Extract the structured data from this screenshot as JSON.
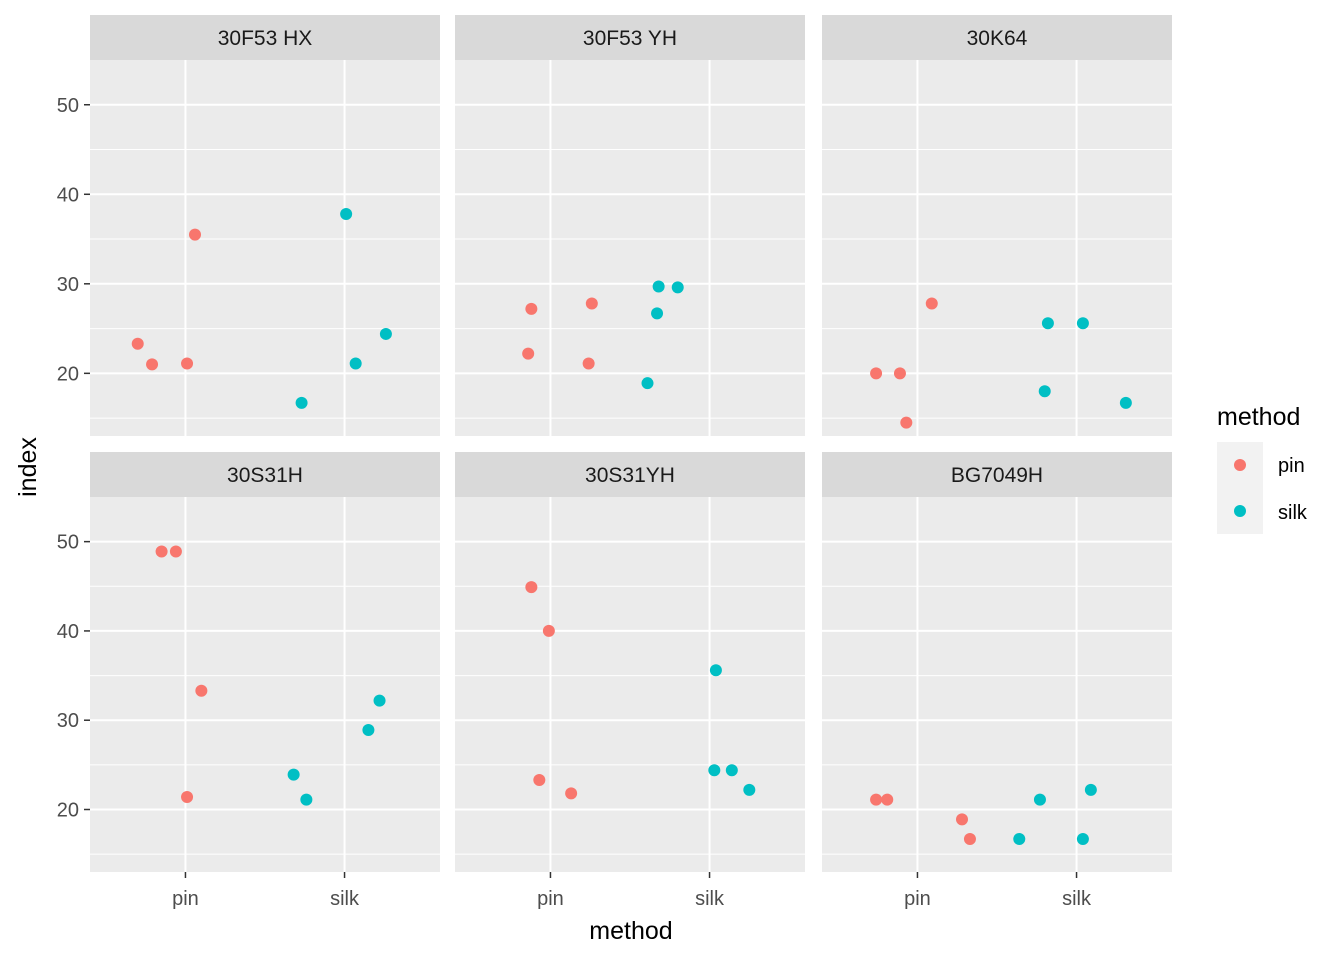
{
  "chart_data": {
    "type": "scatter",
    "xlabel": "method",
    "ylabel": "index",
    "categories": [
      "pin",
      "silk"
    ],
    "ylim": [
      13,
      55
    ],
    "yticks": [
      20,
      30,
      40,
      50
    ],
    "grid": true,
    "legend": {
      "title": "method",
      "position": "right",
      "entries": [
        {
          "label": "pin",
          "color": "#F8766D"
        },
        {
          "label": "silk",
          "color": "#00BFC4"
        }
      ]
    },
    "facets": [
      {
        "label": "30F53 HX",
        "points": [
          {
            "method": "pin",
            "x": 0.7,
            "y": 23.3
          },
          {
            "method": "pin",
            "x": 0.79,
            "y": 21.0
          },
          {
            "method": "pin",
            "x": 1.01,
            "y": 21.1
          },
          {
            "method": "pin",
            "x": 1.06,
            "y": 35.5
          },
          {
            "method": "silk",
            "x": 1.73,
            "y": 16.7
          },
          {
            "method": "silk",
            "x": 2.01,
            "y": 37.8
          },
          {
            "method": "silk",
            "x": 2.07,
            "y": 21.1
          },
          {
            "method": "silk",
            "x": 2.26,
            "y": 24.4
          }
        ]
      },
      {
        "label": "30F53 YH",
        "points": [
          {
            "method": "pin",
            "x": 0.86,
            "y": 22.2
          },
          {
            "method": "pin",
            "x": 0.88,
            "y": 27.2
          },
          {
            "method": "pin",
            "x": 1.24,
            "y": 21.1
          },
          {
            "method": "pin",
            "x": 1.26,
            "y": 27.8
          },
          {
            "method": "silk",
            "x": 1.61,
            "y": 18.9
          },
          {
            "method": "silk",
            "x": 1.67,
            "y": 26.7
          },
          {
            "method": "silk",
            "x": 1.68,
            "y": 29.7
          },
          {
            "method": "silk",
            "x": 1.8,
            "y": 29.6
          }
        ]
      },
      {
        "label": "30K64",
        "points": [
          {
            "method": "pin",
            "x": 0.74,
            "y": 20.0
          },
          {
            "method": "pin",
            "x": 0.89,
            "y": 20.0
          },
          {
            "method": "pin",
            "x": 0.93,
            "y": 14.5
          },
          {
            "method": "pin",
            "x": 1.09,
            "y": 27.8
          },
          {
            "method": "silk",
            "x": 1.8,
            "y": 18.0
          },
          {
            "method": "silk",
            "x": 1.82,
            "y": 25.6
          },
          {
            "method": "silk",
            "x": 2.04,
            "y": 25.6
          },
          {
            "method": "silk",
            "x": 2.31,
            "y": 16.7
          }
        ]
      },
      {
        "label": "30S31H",
        "points": [
          {
            "method": "pin",
            "x": 0.85,
            "y": 48.9
          },
          {
            "method": "pin",
            "x": 0.94,
            "y": 48.9
          },
          {
            "method": "pin",
            "x": 1.01,
            "y": 21.4
          },
          {
            "method": "pin",
            "x": 1.1,
            "y": 33.3
          },
          {
            "method": "silk",
            "x": 1.68,
            "y": 23.9
          },
          {
            "method": "silk",
            "x": 1.76,
            "y": 21.1
          },
          {
            "method": "silk",
            "x": 2.15,
            "y": 28.9
          },
          {
            "method": "silk",
            "x": 2.22,
            "y": 32.2
          }
        ]
      },
      {
        "label": "30S31YH",
        "points": [
          {
            "method": "pin",
            "x": 0.88,
            "y": 44.9
          },
          {
            "method": "pin",
            "x": 0.93,
            "y": 23.3
          },
          {
            "method": "pin",
            "x": 0.99,
            "y": 40.0
          },
          {
            "method": "pin",
            "x": 1.13,
            "y": 21.8
          },
          {
            "method": "silk",
            "x": 2.03,
            "y": 24.4
          },
          {
            "method": "silk",
            "x": 2.04,
            "y": 35.6
          },
          {
            "method": "silk",
            "x": 2.14,
            "y": 24.4
          },
          {
            "method": "silk",
            "x": 2.25,
            "y": 22.2
          }
        ]
      },
      {
        "label": "BG7049H",
        "points": [
          {
            "method": "pin",
            "x": 0.74,
            "y": 21.1
          },
          {
            "method": "pin",
            "x": 0.81,
            "y": 21.1
          },
          {
            "method": "pin",
            "x": 1.28,
            "y": 18.9
          },
          {
            "method": "pin",
            "x": 1.33,
            "y": 16.7
          },
          {
            "method": "silk",
            "x": 1.64,
            "y": 16.7
          },
          {
            "method": "silk",
            "x": 1.77,
            "y": 21.1
          },
          {
            "method": "silk",
            "x": 2.04,
            "y": 16.7
          },
          {
            "method": "silk",
            "x": 2.09,
            "y": 22.2
          }
        ]
      }
    ]
  }
}
